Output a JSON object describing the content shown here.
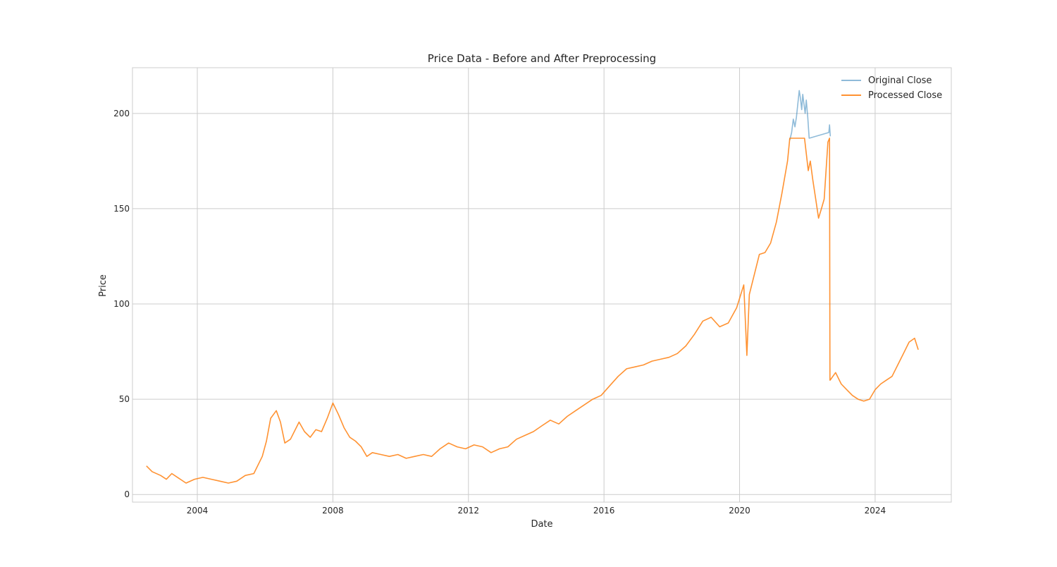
{
  "chart_data": {
    "type": "line",
    "title": "Price Data - Before and After Preprocessing",
    "xlabel": "Date",
    "ylabel": "Price",
    "xlim": [
      "2002-02-01",
      "2026-04-01"
    ],
    "ylim": [
      -4,
      224
    ],
    "grid": true,
    "legend_position": "top-right",
    "x_ticks": [
      "2004",
      "2008",
      "2012",
      "2016",
      "2020",
      "2024"
    ],
    "y_ticks": [
      0,
      50,
      100,
      150,
      200
    ],
    "series": [
      {
        "name": "Original Close",
        "color": "#1f77b4",
        "opacity": 0.5,
        "x": [
          "2021-06-25",
          "2021-07-15",
          "2021-08-02",
          "2021-08-20",
          "2021-09-05",
          "2021-09-20",
          "2021-10-05",
          "2021-10-18",
          "2021-11-01",
          "2021-11-12",
          "2021-11-25",
          "2021-12-08",
          "2021-12-20",
          "2022-01-05",
          "2022-01-20",
          "2022-08-20",
          "2022-08-28",
          "2022-09-05"
        ],
        "y": [
          186,
          190,
          197,
          193,
          198,
          205,
          212,
          208,
          202,
          210,
          205,
          200,
          207,
          198,
          187,
          190,
          194,
          188
        ]
      },
      {
        "name": "Processed Close",
        "color": "#ff7f0e",
        "opacity": 0.85,
        "x": [
          "2002-07-01",
          "2002-09-01",
          "2002-12-01",
          "2003-02-01",
          "2003-04-01",
          "2003-06-01",
          "2003-09-01",
          "2003-12-01",
          "2004-03-01",
          "2004-06-01",
          "2004-09-01",
          "2004-12-01",
          "2005-03-01",
          "2005-06-01",
          "2005-09-01",
          "2005-12-01",
          "2006-01-15",
          "2006-03-01",
          "2006-05-01",
          "2006-06-15",
          "2006-08-01",
          "2006-10-01",
          "2007-01-01",
          "2007-03-01",
          "2007-05-01",
          "2007-07-01",
          "2007-09-01",
          "2007-11-01",
          "2008-01-01",
          "2008-03-01",
          "2008-05-01",
          "2008-07-01",
          "2008-09-01",
          "2008-11-01",
          "2009-01-01",
          "2009-03-01",
          "2009-06-01",
          "2009-09-01",
          "2009-12-01",
          "2010-03-01",
          "2010-06-01",
          "2010-09-01",
          "2010-12-01",
          "2011-03-01",
          "2011-06-01",
          "2011-09-01",
          "2011-12-01",
          "2012-03-01",
          "2012-06-01",
          "2012-09-01",
          "2012-12-01",
          "2013-03-01",
          "2013-06-01",
          "2013-09-01",
          "2013-12-01",
          "2014-03-01",
          "2014-06-01",
          "2014-09-01",
          "2014-12-01",
          "2015-03-01",
          "2015-06-01",
          "2015-09-01",
          "2015-12-01",
          "2016-03-01",
          "2016-06-01",
          "2016-09-01",
          "2016-12-01",
          "2017-03-01",
          "2017-06-01",
          "2017-09-01",
          "2017-12-01",
          "2018-03-01",
          "2018-06-01",
          "2018-09-01",
          "2018-12-01",
          "2019-03-01",
          "2019-06-01",
          "2019-09-01",
          "2019-12-01",
          "2020-02-15",
          "2020-03-20",
          "2020-04-15",
          "2020-06-01",
          "2020-08-01",
          "2020-10-01",
          "2020-12-01",
          "2021-02-01",
          "2021-04-01",
          "2021-06-01",
          "2021-06-25",
          "2021-08-01",
          "2021-10-01",
          "2021-12-01",
          "2022-01-10",
          "2022-02-01",
          "2022-03-01",
          "2022-04-01",
          "2022-05-01",
          "2022-06-01",
          "2022-07-01",
          "2022-08-10",
          "2022-08-28",
          "2022-09-01",
          "2022-09-03",
          "2022-11-01",
          "2023-01-01",
          "2023-03-01",
          "2023-05-01",
          "2023-07-01",
          "2023-09-01",
          "2023-11-01",
          "2024-01-01",
          "2024-03-01",
          "2024-05-01",
          "2024-07-01",
          "2024-09-01",
          "2024-11-01",
          "2025-01-01",
          "2025-03-01",
          "2025-04-10"
        ],
        "y": [
          15,
          12,
          10,
          8,
          11,
          9,
          6,
          8,
          9,
          8,
          7,
          6,
          7,
          10,
          11,
          20,
          28,
          40,
          44,
          38,
          27,
          29,
          38,
          33,
          30,
          34,
          33,
          40,
          48,
          42,
          35,
          30,
          28,
          25,
          20,
          22,
          21,
          20,
          21,
          19,
          20,
          21,
          20,
          24,
          27,
          25,
          24,
          26,
          25,
          22,
          24,
          25,
          29,
          31,
          33,
          36,
          39,
          37,
          41,
          44,
          47,
          50,
          52,
          57,
          62,
          66,
          67,
          68,
          70,
          71,
          72,
          74,
          78,
          84,
          91,
          93,
          88,
          90,
          98,
          110,
          73,
          105,
          114,
          126,
          127,
          132,
          143,
          158,
          175,
          187,
          187,
          187,
          187,
          170,
          175,
          165,
          155,
          145,
          150,
          155,
          185,
          187,
          60,
          60,
          64,
          58,
          55,
          52,
          50,
          49,
          50,
          55,
          58,
          60,
          62,
          68,
          74,
          80,
          82,
          76
        ]
      }
    ]
  }
}
